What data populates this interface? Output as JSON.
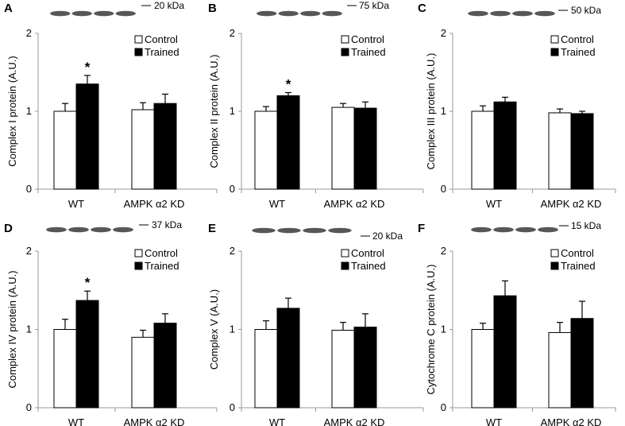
{
  "figure": {
    "colors": {
      "control": "#ffffff",
      "trained": "#000000",
      "axis": "#9a9a9a",
      "band": "#3a3a3a"
    }
  },
  "chart_data": [
    {
      "type": "bar",
      "panel": "A",
      "categories": [
        "WT",
        "AMPK α2 KD"
      ],
      "series": [
        {
          "name": "Control",
          "values": [
            1.0,
            1.02
          ],
          "errors": [
            0.1,
            0.09
          ]
        },
        {
          "name": "Trained",
          "values": [
            1.35,
            1.1
          ],
          "errors": [
            0.11,
            0.12
          ]
        }
      ],
      "ylabel": "Complex I protein (A.U.)",
      "ylim": [
        0,
        2
      ],
      "yticks": [
        "0",
        "1",
        "2"
      ],
      "significance": [
        {
          "category": 0,
          "series": 1,
          "label": "*"
        }
      ],
      "blot": {
        "label": "20 kDa",
        "bands": 4
      },
      "legend": "top-right"
    },
    {
      "type": "bar",
      "panel": "B",
      "categories": [
        "WT",
        "AMPK α2 KD"
      ],
      "series": [
        {
          "name": "Control",
          "values": [
            1.0,
            1.05
          ],
          "errors": [
            0.06,
            0.05
          ]
        },
        {
          "name": "Trained",
          "values": [
            1.2,
            1.04
          ],
          "errors": [
            0.04,
            0.08
          ]
        }
      ],
      "ylabel": "Complex II protein (A.U.)",
      "ylim": [
        0,
        2
      ],
      "yticks": [
        "0",
        "1",
        "2"
      ],
      "significance": [
        {
          "category": 0,
          "series": 1,
          "label": "*"
        }
      ],
      "blot": {
        "label": "75 kDa",
        "bands": 4
      },
      "legend": "top-right"
    },
    {
      "type": "bar",
      "panel": "C",
      "categories": [
        "WT",
        "AMPK α2 KD"
      ],
      "series": [
        {
          "name": "Control",
          "values": [
            1.0,
            0.98
          ],
          "errors": [
            0.07,
            0.05
          ]
        },
        {
          "name": "Trained",
          "values": [
            1.12,
            0.97
          ],
          "errors": [
            0.06,
            0.03
          ]
        }
      ],
      "ylabel": "Complex III protein (A.U.)",
      "ylim": [
        0,
        2
      ],
      "yticks": [
        "0",
        "1",
        "2"
      ],
      "significance": [],
      "blot": {
        "label": "50 kDa",
        "bands": 4
      },
      "legend": "top-right"
    },
    {
      "type": "bar",
      "panel": "D",
      "categories": [
        "WT",
        "AMPK α2 KD"
      ],
      "series": [
        {
          "name": "Control",
          "values": [
            1.0,
            0.9
          ],
          "errors": [
            0.13,
            0.09
          ]
        },
        {
          "name": "Trained",
          "values": [
            1.37,
            1.08
          ],
          "errors": [
            0.12,
            0.12
          ]
        }
      ],
      "ylabel": "Complex IV protein (A.U.)",
      "ylim": [
        0,
        2
      ],
      "yticks": [
        "0",
        "1",
        "2"
      ],
      "significance": [
        {
          "category": 0,
          "series": 1,
          "label": "*"
        }
      ],
      "blot": {
        "label": "37 kDa",
        "bands": 4
      },
      "legend": "top-right"
    },
    {
      "type": "bar",
      "panel": "E",
      "categories": [
        "WT",
        "AMPK α2 KD"
      ],
      "series": [
        {
          "name": "Control",
          "values": [
            1.0,
            0.99
          ],
          "errors": [
            0.11,
            0.1
          ]
        },
        {
          "name": "Trained",
          "values": [
            1.27,
            1.03
          ],
          "errors": [
            0.13,
            0.17
          ]
        }
      ],
      "ylabel": "Complex V (A.U.)",
      "ylim": [
        0,
        2
      ],
      "yticks": [
        "0",
        "1",
        "2"
      ],
      "significance": [],
      "blot": {
        "label": "20 kDa",
        "bands": 4
      },
      "legend": "top-right"
    },
    {
      "type": "bar",
      "panel": "F",
      "categories": [
        "WT",
        "AMPK α2 KD"
      ],
      "series": [
        {
          "name": "Control",
          "values": [
            1.0,
            0.96
          ],
          "errors": [
            0.08,
            0.13
          ]
        },
        {
          "name": "Trained",
          "values": [
            1.43,
            1.14
          ],
          "errors": [
            0.19,
            0.22
          ]
        }
      ],
      "ylabel": "Cytochrome C protein (A.U.)",
      "ylim": [
        0,
        2
      ],
      "yticks": [
        "0",
        "1",
        "2"
      ],
      "significance": [],
      "blot": {
        "label": "15 kDa",
        "bands": 4
      },
      "legend": "top-right"
    }
  ]
}
